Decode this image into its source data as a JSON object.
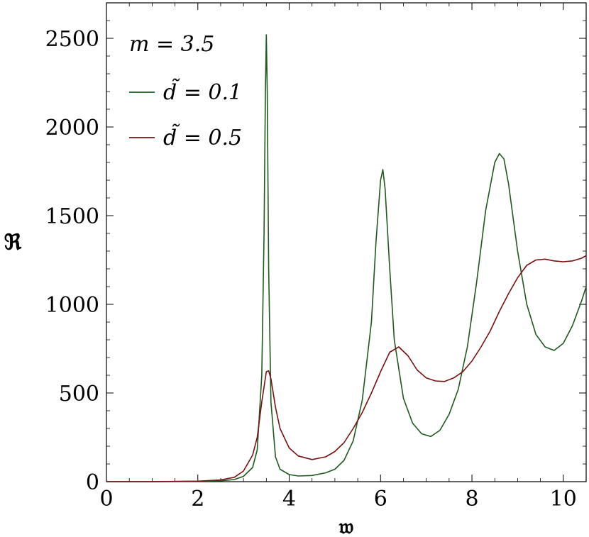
{
  "chart_data": {
    "type": "line",
    "xlabel": "𝔴",
    "ylabel": "ℜ",
    "xlim": [
      0,
      10.5
    ],
    "ylim": [
      0,
      2700
    ],
    "xticks": [
      0,
      2,
      4,
      6,
      8,
      10
    ],
    "yticks": [
      0,
      500,
      1000,
      1500,
      2000,
      2500
    ],
    "grid": false,
    "legend_position": "top-left",
    "legend_title": "m = 3.5",
    "series": [
      {
        "name": "d̃ = 0.1",
        "color": "#1e5a1e",
        "x": [
          0,
          1,
          2,
          2.5,
          2.8,
          3.0,
          3.2,
          3.3,
          3.4,
          3.45,
          3.48,
          3.5,
          3.52,
          3.55,
          3.6,
          3.7,
          3.8,
          4.0,
          4.2,
          4.5,
          4.8,
          5.0,
          5.2,
          5.4,
          5.6,
          5.8,
          5.9,
          6.0,
          6.05,
          6.1,
          6.2,
          6.3,
          6.5,
          6.7,
          6.9,
          7.1,
          7.3,
          7.5,
          7.7,
          7.9,
          8.1,
          8.3,
          8.5,
          8.6,
          8.7,
          8.8,
          9.0,
          9.2,
          9.4,
          9.6,
          9.8,
          10.0,
          10.2,
          10.4,
          10.5
        ],
        "y": [
          0,
          0,
          2,
          5,
          12,
          30,
          80,
          180,
          600,
          1400,
          2200,
          2520,
          2200,
          1200,
          450,
          140,
          70,
          40,
          32,
          35,
          50,
          70,
          120,
          230,
          460,
          900,
          1350,
          1700,
          1760,
          1650,
          1200,
          800,
          470,
          330,
          270,
          255,
          290,
          380,
          520,
          760,
          1120,
          1530,
          1800,
          1850,
          1820,
          1680,
          1300,
          1000,
          830,
          760,
          740,
          780,
          880,
          1020,
          1100
        ]
      },
      {
        "name": "d̃ = 0.5",
        "color": "#7a1010",
        "x": [
          0,
          1,
          2,
          2.5,
          2.8,
          3.0,
          3.2,
          3.3,
          3.4,
          3.5,
          3.55,
          3.6,
          3.7,
          3.8,
          4.0,
          4.2,
          4.5,
          4.8,
          5.0,
          5.2,
          5.4,
          5.6,
          5.8,
          6.0,
          6.2,
          6.4,
          6.6,
          6.8,
          7.0,
          7.2,
          7.4,
          7.6,
          7.8,
          8.0,
          8.2,
          8.4,
          8.6,
          8.8,
          9.0,
          9.2,
          9.4,
          9.6,
          9.8,
          10.0,
          10.2,
          10.4,
          10.5
        ],
        "y": [
          0,
          0,
          3,
          10,
          25,
          60,
          150,
          250,
          450,
          620,
          625,
          580,
          420,
          300,
          190,
          145,
          125,
          140,
          170,
          220,
          300,
          390,
          500,
          620,
          730,
          760,
          710,
          630,
          585,
          568,
          565,
          585,
          620,
          680,
          760,
          850,
          960,
          1060,
          1150,
          1220,
          1250,
          1255,
          1245,
          1240,
          1245,
          1260,
          1275
        ]
      }
    ]
  }
}
